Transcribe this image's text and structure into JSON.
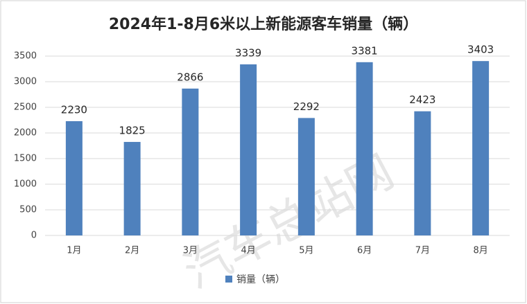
{
  "chart_data": {
    "type": "bar",
    "title": "2024年1-8月6米以上新能源客车销量（辆）",
    "watermark": "汽车总站网",
    "categories": [
      "1月",
      "2月",
      "3月",
      "4月",
      "5月",
      "6月",
      "7月",
      "8月"
    ],
    "series": [
      {
        "name": "销量（辆）",
        "color": "#4f81bd",
        "values": [
          2230,
          1825,
          2866,
          3339,
          2292,
          3381,
          2423,
          3403
        ]
      }
    ],
    "ylim": [
      0,
      3500
    ],
    "yticks": [
      0,
      500,
      1000,
      1500,
      2000,
      2500,
      3000,
      3500
    ],
    "grid": true,
    "legend": "bottom"
  }
}
